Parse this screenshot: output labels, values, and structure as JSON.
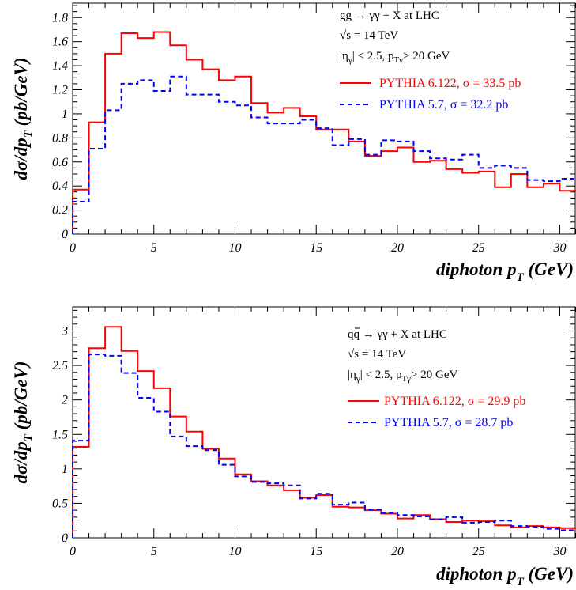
{
  "chart_data": [
    {
      "type": "line",
      "style": "histogram-step",
      "x_bins": [
        0,
        1,
        2,
        3,
        4,
        5,
        6,
        7,
        8,
        9,
        10,
        11,
        12,
        13,
        14,
        15,
        16,
        17,
        18,
        19,
        20,
        21,
        22,
        23,
        24,
        25,
        26,
        27,
        28,
        29,
        30,
        31
      ],
      "series": [
        {
          "name": "PYTHIA 6.122, σ = 33.5 pb",
          "color": "#ff0000",
          "line": "solid",
          "values": [
            0.37,
            0.93,
            1.5,
            1.67,
            1.63,
            1.68,
            1.57,
            1.45,
            1.37,
            1.28,
            1.31,
            1.09,
            1.01,
            1.05,
            0.98,
            0.87,
            0.87,
            0.77,
            0.65,
            0.69,
            0.72,
            0.6,
            0.61,
            0.54,
            0.51,
            0.52,
            0.39,
            0.5,
            0.39,
            0.42,
            0.36
          ]
        },
        {
          "name": "PYTHIA 5.7, σ =  32.2 pb",
          "color": "#0000ff",
          "line": "dashed",
          "values": [
            0.27,
            0.71,
            1.03,
            1.25,
            1.28,
            1.19,
            1.31,
            1.16,
            1.16,
            1.1,
            1.07,
            0.97,
            0.92,
            0.92,
            0.95,
            0.88,
            0.74,
            0.79,
            0.66,
            0.78,
            0.77,
            0.69,
            0.63,
            0.62,
            0.66,
            0.55,
            0.57,
            0.55,
            0.45,
            0.44,
            0.46
          ]
        }
      ],
      "xlim": [
        0,
        31
      ],
      "ylim": [
        0,
        1.92
      ],
      "x_ticks": [
        "0",
        "5",
        "10",
        "15",
        "20",
        "25",
        "30"
      ],
      "y_ticks": [
        "0",
        "0.2",
        "0.4",
        "0.6",
        "0.8",
        "1",
        "1.2",
        "1.4",
        "1.6",
        "1.8"
      ],
      "xlabel": "diphoton p",
      "xlabel_sub": "T",
      "xlabel_unit": " (GeV)",
      "ylabel": "dσ/dp",
      "ylabel_sub": "T",
      "ylabel_unit": " (pb/GeV)",
      "info": [
        "gg → γγ + X  at  LHC",
        "√s = 14 TeV",
        "|η",
        "γ",
        "| < 2.5, p",
        "Tγ",
        "> 20 GeV"
      ],
      "legend_position": "top-right"
    },
    {
      "type": "line",
      "style": "histogram-step",
      "x_bins": [
        0,
        1,
        2,
        3,
        4,
        5,
        6,
        7,
        8,
        9,
        10,
        11,
        12,
        13,
        14,
        15,
        16,
        17,
        18,
        19,
        20,
        21,
        22,
        23,
        24,
        25,
        26,
        27,
        28,
        29,
        30,
        31
      ],
      "series": [
        {
          "name": "PYTHIA 6.122, σ = 29.9 pb",
          "color": "#ff0000",
          "line": "solid",
          "values": [
            1.32,
            2.75,
            3.06,
            2.71,
            2.42,
            2.17,
            1.76,
            1.54,
            1.29,
            1.15,
            0.92,
            0.82,
            0.76,
            0.69,
            0.58,
            0.62,
            0.45,
            0.44,
            0.4,
            0.35,
            0.28,
            0.33,
            0.27,
            0.23,
            0.25,
            0.24,
            0.18,
            0.15,
            0.17,
            0.15,
            0.14
          ]
        },
        {
          "name": "PYTHIA 5.7, σ = 28.7 pb",
          "color": "#0000ff",
          "line": "dashed",
          "values": [
            1.41,
            2.66,
            2.64,
            2.39,
            2.03,
            1.83,
            1.47,
            1.33,
            1.27,
            1.06,
            0.89,
            0.81,
            0.79,
            0.76,
            0.57,
            0.64,
            0.48,
            0.51,
            0.41,
            0.36,
            0.33,
            0.31,
            0.27,
            0.3,
            0.22,
            0.23,
            0.25,
            0.17,
            0.16,
            0.13,
            0.11
          ]
        }
      ],
      "xlim": [
        0,
        31
      ],
      "ylim": [
        0,
        3.35
      ],
      "x_ticks": [
        "0",
        "5",
        "10",
        "15",
        "20",
        "25",
        "30"
      ],
      "y_ticks": [
        "0",
        "0.5",
        "1",
        "1.5",
        "2",
        "2.5",
        "3"
      ],
      "xlabel": "diphoton p",
      "xlabel_sub": "T",
      "xlabel_unit": " (GeV)",
      "ylabel": "dσ/dp",
      "ylabel_sub": "T",
      "ylabel_unit": " (pb/GeV)",
      "info": [
        "qq → γγ + X  at  LHC",
        "√s = 14 TeV",
        "|η",
        "γ",
        "| < 2.5, p",
        "Tγ",
        "> 20 GeV"
      ],
      "legend_position": "top-right"
    }
  ]
}
